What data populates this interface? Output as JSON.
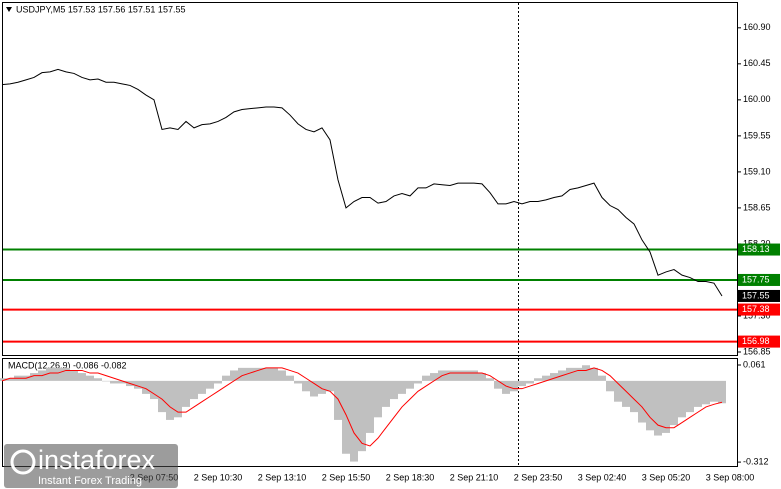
{
  "chart_data": [
    {
      "type": "line",
      "title": "USDJPY,M5  157.53 157.56 157.51 157.55",
      "categories": [
        null,
        null,
        null,
        null,
        null,
        null,
        null,
        null,
        null,
        null,
        null,
        null,
        null,
        null,
        null,
        null,
        null,
        null,
        null,
        "2 Sep 07:50",
        null,
        null,
        null,
        null,
        null,
        null,
        null,
        "2 Sep 10:30",
        null,
        null,
        null,
        null,
        null,
        null,
        null,
        "2 Sep 13:10",
        null,
        null,
        null,
        null,
        null,
        null,
        null,
        "2 Sep 15:50",
        null,
        null,
        null,
        null,
        null,
        null,
        null,
        "2 Sep 18:30",
        null,
        null,
        null,
        null,
        null,
        null,
        null,
        "2 Sep 21:10",
        null,
        null,
        null,
        null,
        null,
        null,
        null,
        "2 Sep 23:50",
        null,
        null,
        null,
        null,
        null,
        null,
        null,
        "3 Sep 02:40",
        null,
        null,
        null,
        null,
        null,
        null,
        null,
        "3 Sep 05:20",
        null,
        null,
        null,
        null,
        null,
        null,
        null,
        "3 Sep 08:00"
      ],
      "series": [
        {
          "name": "USDJPY,M5",
          "color": "#000000",
          "values": [
            160.19,
            160.2,
            160.22,
            160.25,
            160.28,
            160.34,
            160.35,
            160.38,
            160.35,
            160.33,
            160.28,
            160.25,
            160.26,
            160.22,
            160.22,
            160.2,
            160.18,
            160.13,
            160.06,
            160.0,
            159.63,
            159.65,
            159.63,
            159.73,
            159.65,
            159.69,
            159.7,
            159.73,
            159.78,
            159.85,
            159.88,
            159.89,
            159.9,
            159.91,
            159.91,
            159.9,
            159.81,
            159.7,
            159.63,
            159.6,
            159.65,
            159.5,
            159.0,
            158.65,
            158.73,
            158.78,
            158.78,
            158.71,
            158.73,
            158.8,
            158.83,
            158.8,
            158.9,
            158.9,
            158.95,
            158.94,
            158.93,
            158.96,
            158.96,
            158.96,
            158.95,
            158.84,
            158.7,
            158.7,
            158.73,
            158.7,
            158.73,
            158.73,
            158.75,
            158.78,
            158.8,
            158.88,
            158.9,
            158.93,
            158.96,
            158.78,
            158.68,
            158.63,
            158.53,
            158.45,
            158.25,
            158.1,
            157.81,
            157.85,
            157.88,
            157.81,
            157.78,
            157.73,
            157.73,
            157.71,
            157.55,
            null
          ]
        }
      ],
      "ylim": [
        156.8,
        161.21
      ],
      "yticks": [
        {
          "value": 160.9,
          "label": "160.90"
        },
        160.45,
        {
          "value": 160,
          "label": "160.00"
        },
        159.55,
        {
          "value": 159.1,
          "label": "159.10"
        },
        158.65,
        {
          "value": 158.2,
          "label": "158.20"
        },
        {
          "value": 157.3,
          "label": "157.30"
        },
        156.85
      ],
      "levels": [
        {
          "value": 158.13,
          "color": "#008000"
        },
        {
          "value": 157.75,
          "color": "#008000"
        },
        {
          "value": 157.38,
          "color": "#ff0000"
        },
        {
          "value": 156.98,
          "color": "#ff0000"
        }
      ],
      "grid": false
    },
    {
      "type": "macd",
      "title": "MACD(12,26,9) -0.086 -0.082",
      "series": [
        {
          "name": "MACD",
          "color": "#c0c0c0",
          "values": [
            0.01,
            0.01,
            0.02,
            0.02,
            0.03,
            0.04,
            0.05,
            0.05,
            0.05,
            0.04,
            0.03,
            0.02,
            0.01,
            0.0,
            -0.01,
            -0.01,
            -0.02,
            -0.03,
            -0.05,
            -0.07,
            -0.12,
            -0.15,
            -0.14,
            -0.1,
            -0.07,
            -0.05,
            -0.03,
            -0.01,
            0.02,
            0.04,
            0.05,
            0.05,
            0.05,
            0.05,
            0.05,
            0.04,
            0.02,
            -0.01,
            -0.04,
            -0.06,
            -0.05,
            -0.04,
            -0.15,
            -0.28,
            -0.31,
            -0.27,
            -0.2,
            -0.14,
            -0.1,
            -0.07,
            -0.05,
            -0.03,
            -0.01,
            0.02,
            0.03,
            0.04,
            0.04,
            0.04,
            0.04,
            0.04,
            0.03,
            0.01,
            -0.03,
            -0.05,
            -0.04,
            -0.02,
            -0.01,
            0.01,
            0.02,
            0.03,
            0.04,
            0.05,
            0.05,
            0.06,
            0.05,
            0.02,
            -0.04,
            -0.08,
            -0.1,
            -0.12,
            -0.16,
            -0.19,
            -0.21,
            -0.2,
            -0.17,
            -0.14,
            -0.12,
            -0.1,
            -0.09,
            -0.08,
            -0.086,
            null
          ]
        },
        {
          "name": "Signal",
          "color": "#ff0000",
          "values": [
            0.0,
            0.01,
            0.01,
            0.01,
            0.02,
            0.02,
            0.03,
            0.03,
            0.04,
            0.04,
            0.04,
            0.03,
            0.03,
            0.02,
            0.01,
            0.0,
            -0.01,
            -0.02,
            -0.03,
            -0.05,
            -0.07,
            -0.1,
            -0.12,
            -0.12,
            -0.1,
            -0.08,
            -0.06,
            -0.04,
            -0.02,
            0.0,
            0.02,
            0.03,
            0.04,
            0.05,
            0.05,
            0.05,
            0.04,
            0.03,
            0.01,
            -0.01,
            -0.03,
            -0.04,
            -0.07,
            -0.13,
            -0.2,
            -0.24,
            -0.25,
            -0.22,
            -0.18,
            -0.14,
            -0.1,
            -0.07,
            -0.04,
            -0.02,
            0.0,
            0.02,
            0.03,
            0.03,
            0.03,
            0.03,
            0.03,
            0.02,
            0.0,
            -0.02,
            -0.03,
            -0.03,
            -0.02,
            -0.01,
            0.0,
            0.01,
            0.02,
            0.03,
            0.04,
            0.04,
            0.05,
            0.04,
            0.02,
            -0.01,
            -0.04,
            -0.07,
            -0.1,
            -0.14,
            -0.17,
            -0.18,
            -0.18,
            -0.16,
            -0.14,
            -0.12,
            -0.1,
            -0.09,
            -0.082,
            null
          ]
        }
      ],
      "ylim": [
        -0.327,
        0.084
      ],
      "yticks": [
        0.061,
        -0.312
      ]
    }
  ],
  "watermark": {
    "brand": "instaforex",
    "tagline": "Instant Forex Trading"
  }
}
